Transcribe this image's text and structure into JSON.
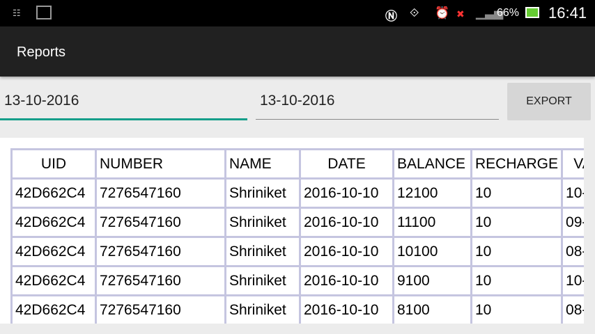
{
  "status_bar": {
    "battery": "66%",
    "time": "16:41",
    "icons": [
      "notification-list-icon",
      "gallery-icon",
      "nfc-icon",
      "screen-rotate-icon",
      "alarm-icon",
      "sim-missing-icon",
      "signal-icon",
      "battery-charging-icon"
    ]
  },
  "app_bar": {
    "title": "Reports"
  },
  "filters": {
    "from_date": "13-10-2016",
    "to_date": "13-10-2016",
    "export_label": "EXPORT",
    "accent": "#159e8a"
  },
  "table": {
    "columns": [
      "UID",
      "NUMBER",
      "NAME",
      "DATE",
      "BALANCE",
      "RECHARGE",
      "VA"
    ],
    "rows": [
      [
        "42D662C4",
        "7276547160",
        "Shriniket",
        "2016-10-10",
        "12100",
        "10",
        "10-"
      ],
      [
        "42D662C4",
        "7276547160",
        "Shriniket",
        "2016-10-10",
        "11100",
        "10",
        "09-"
      ],
      [
        "42D662C4",
        "7276547160",
        "Shriniket",
        "2016-10-10",
        "10100",
        "10",
        "08-"
      ],
      [
        "42D662C4",
        "7276547160",
        "Shriniket",
        "2016-10-10",
        "9100",
        "10",
        "10-"
      ],
      [
        "42D662C4",
        "7276547160",
        "Shriniket",
        "2016-10-10",
        "8100",
        "10",
        "08-"
      ]
    ]
  }
}
